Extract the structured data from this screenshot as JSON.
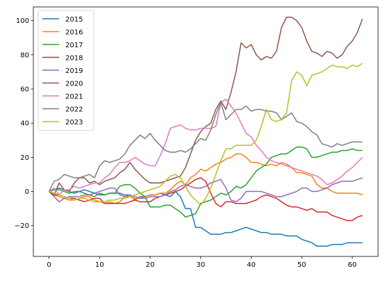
{
  "chart_data": {
    "type": "line",
    "title": "",
    "xlabel": "",
    "ylabel": "",
    "xlim": [
      -3.1,
      65.1
    ],
    "ylim": [
      -38,
      108
    ],
    "x_ticks": [
      0,
      10,
      20,
      30,
      40,
      50,
      60
    ],
    "y_ticks": [
      -20,
      0,
      20,
      40,
      60,
      80,
      100
    ],
    "grid": false,
    "legend_position": "top-left",
    "series": [
      {
        "name": "2015",
        "color": "#1f77b4",
        "values": [
          0,
          1,
          2,
          1,
          0,
          -1,
          0,
          1,
          0,
          -1,
          -2,
          -2,
          -1,
          -1,
          -1,
          -2,
          -2,
          -5,
          -3,
          -3,
          -2,
          -2,
          -1,
          -2,
          -3,
          0,
          -3,
          -10,
          -10,
          -21,
          -21,
          -23,
          -25,
          -25,
          -25,
          -24,
          -24,
          -23,
          -22,
          -21,
          -22,
          -23,
          -24,
          -24,
          -25,
          -25,
          -25,
          -26,
          -26,
          -26,
          -28,
          -29,
          -30,
          -32,
          -32,
          -32,
          -31,
          -31,
          -31,
          -30,
          -30,
          -30,
          -30
        ]
      },
      {
        "name": "2016",
        "color": "#ff7f0e",
        "values": [
          0,
          -2,
          -3,
          -4,
          -5,
          -5,
          -4,
          -3,
          -3,
          -5,
          -6,
          -7,
          -6,
          -7,
          -6,
          -3,
          -3,
          -4,
          -4,
          -3,
          -2,
          -2,
          -1,
          -1,
          1,
          4,
          6,
          4,
          8,
          10,
          13,
          12,
          14,
          16,
          17,
          19,
          20,
          22,
          22,
          20,
          17,
          17,
          16,
          15,
          16,
          15,
          17,
          16,
          14,
          11,
          11,
          10,
          9,
          4,
          2,
          2,
          0,
          -1,
          -1,
          -1,
          -1,
          -1,
          -2
        ]
      },
      {
        "name": "2017",
        "color": "#2ca02c",
        "values": [
          0,
          1,
          1,
          0,
          -1,
          0,
          0,
          -1,
          -2,
          -3,
          -1,
          -2,
          -1,
          -1,
          3,
          4,
          4,
          2,
          -1,
          -3,
          -9,
          -9,
          -9,
          -8,
          -8,
          -10,
          -12,
          -15,
          -14,
          -13,
          -7,
          -6,
          -5,
          -3,
          -1,
          -2,
          0,
          3,
          2,
          4,
          8,
          12,
          14,
          16,
          20,
          21,
          22,
          22,
          24,
          26,
          26,
          25,
          20,
          20,
          21,
          22,
          23,
          23,
          24,
          24,
          25,
          24,
          24
        ]
      },
      {
        "name": "2018",
        "color": "#d62728",
        "values": [
          0,
          -2,
          -2,
          -3,
          -4,
          -4,
          -5,
          -6,
          -5,
          -4,
          -4,
          -7,
          -7,
          -7,
          -7,
          -7,
          -6,
          -5,
          -6,
          -6,
          -6,
          -4,
          -3,
          -2,
          -1,
          0,
          1,
          3,
          5,
          7,
          8,
          6,
          -1,
          -7,
          -9,
          -6,
          -6,
          -7,
          -7,
          -7,
          -6,
          -5,
          -3,
          -2,
          -3,
          -4,
          -6,
          -8,
          -9,
          -9,
          -10,
          -11,
          -10,
          -12,
          -12,
          -12,
          -14,
          -15,
          -16,
          -17,
          -17,
          -15,
          -14
        ]
      },
      {
        "name": "2019",
        "color": "#9467bd",
        "values": [
          0,
          -3,
          -6,
          -4,
          -3,
          -3,
          -3,
          -2,
          -2,
          -1,
          0,
          1,
          2,
          2,
          -2,
          -3,
          -2,
          -3,
          -4,
          -4,
          -3,
          -3,
          -3,
          -2,
          0,
          1,
          3,
          4,
          3,
          2,
          2,
          3,
          5,
          6,
          7,
          2,
          -5,
          -6,
          -4,
          0,
          0,
          0,
          0,
          -1,
          -2,
          -3,
          -3,
          -2,
          -1,
          0,
          2,
          2,
          0,
          0,
          1,
          2,
          4,
          5,
          6,
          6,
          6,
          7,
          8
        ]
      },
      {
        "name": "2020",
        "color": "#8c564b",
        "values": [
          0,
          -2,
          5,
          1,
          0,
          5,
          8,
          8,
          5,
          6,
          4,
          6,
          7,
          8,
          11,
          13,
          17,
          13,
          10,
          7,
          5,
          5,
          5,
          6,
          7,
          8,
          9,
          14,
          22,
          30,
          35,
          38,
          40,
          48,
          53,
          48,
          58,
          70,
          87,
          84,
          86,
          80,
          77,
          79,
          78,
          82,
          96,
          102,
          102,
          100,
          96,
          88,
          82,
          81,
          79,
          82,
          81,
          78,
          80,
          85,
          88,
          93,
          101
        ]
      },
      {
        "name": "2021",
        "color": "#e377c2",
        "values": [
          0,
          2,
          -2,
          1,
          1,
          3,
          2,
          3,
          4,
          5,
          5,
          8,
          10,
          14,
          17,
          17,
          18,
          20,
          18,
          16,
          15,
          15,
          21,
          28,
          37,
          38,
          39,
          37,
          36,
          36,
          37,
          37,
          37,
          38,
          52,
          54,
          50,
          46,
          40,
          34,
          32,
          27,
          24,
          20,
          18,
          17,
          16,
          15,
          14,
          13,
          12,
          11,
          10,
          9,
          7,
          4,
          5,
          7,
          9,
          12,
          14,
          17,
          20
        ]
      },
      {
        "name": "2022",
        "color": "#7f7f7f",
        "values": [
          0,
          6,
          7,
          10,
          9,
          8,
          8,
          9,
          10,
          8,
          15,
          18,
          17,
          18,
          19,
          22,
          27,
          30,
          33,
          31,
          34,
          30,
          27,
          24,
          23,
          23,
          24,
          23,
          25,
          28,
          31,
          30,
          36,
          45,
          52,
          42,
          45,
          48,
          48,
          50,
          47,
          48,
          48,
          47,
          47,
          46,
          42,
          44,
          46,
          41,
          40,
          38,
          35,
          33,
          28,
          27,
          26,
          28,
          27,
          28,
          29,
          29,
          29
        ]
      },
      {
        "name": "2023",
        "color": "#bcbd22",
        "values": [
          0,
          -1,
          -2,
          -3,
          -4,
          -5,
          -4,
          -4,
          -5,
          -6,
          -6,
          -6,
          -5,
          -5,
          -4,
          -4,
          -3,
          -2,
          -1,
          0,
          1,
          2,
          3,
          6,
          9,
          10,
          8,
          3,
          -2,
          -5,
          -8,
          -4,
          2,
          10,
          18,
          25,
          25,
          27,
          27,
          27,
          27,
          30,
          38,
          48,
          42,
          41,
          42,
          46,
          65,
          70,
          68,
          62,
          68,
          69,
          70,
          72,
          74,
          73,
          73,
          72,
          74,
          73,
          75
        ]
      }
    ]
  }
}
